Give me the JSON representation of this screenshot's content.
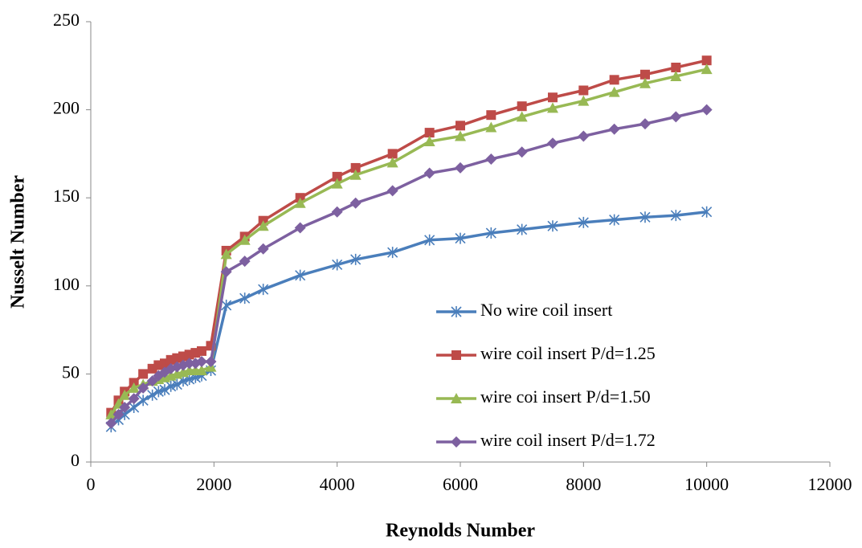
{
  "chart_data": {
    "type": "line",
    "xlabel": "Reynolds Number",
    "ylabel": "Nusselt Number",
    "x": [
      330,
      450,
      550,
      700,
      850,
      1000,
      1100,
      1200,
      1300,
      1400,
      1500,
      1600,
      1700,
      1800,
      1950,
      2200,
      2500,
      2800,
      3400,
      4000,
      4300,
      4900,
      5500,
      6000,
      6500,
      7000,
      7500,
      8000,
      8500,
      9000,
      9500,
      10000
    ],
    "series": [
      {
        "name": "No wire coil insert",
        "color": "#4a7ebb",
        "marker": "star",
        "values": [
          20,
          24,
          27,
          31,
          35,
          38,
          40,
          41,
          43,
          44,
          46,
          47,
          48,
          49,
          52,
          89,
          93,
          98,
          106,
          112,
          115,
          119,
          126,
          127,
          130,
          132,
          134,
          136,
          137.5,
          139,
          140,
          142
        ]
      },
      {
        "name": "wire coil insert P/d=1.25",
        "color": "#be4b48",
        "marker": "square",
        "values": [
          28,
          35,
          40,
          45,
          50,
          53,
          55,
          56,
          58,
          59,
          60,
          61,
          62,
          63,
          66,
          120,
          128,
          137,
          150,
          162,
          167,
          175,
          187,
          191,
          197,
          202,
          207,
          211,
          217,
          220,
          224,
          228
        ]
      },
      {
        "name": "wire coi insert P/d=1.50",
        "color": "#98b954",
        "marker": "triangle",
        "values": [
          27,
          33,
          38,
          42,
          44,
          46,
          47,
          48,
          49,
          50,
          51,
          52,
          52,
          52,
          54,
          118,
          126,
          134,
          147,
          158,
          163,
          170,
          182,
          185,
          190,
          196,
          201,
          205,
          210,
          215,
          219,
          223
        ]
      },
      {
        "name": "wire coil insert P/d=1.72",
        "color": "#7d60a0",
        "marker": "diamond",
        "values": [
          22,
          27,
          31,
          36,
          42,
          46,
          49,
          51,
          53,
          54,
          55,
          56,
          56,
          57,
          57,
          108,
          114,
          121,
          133,
          142,
          147,
          154,
          164,
          167,
          172,
          176,
          181,
          185,
          189,
          192,
          196,
          200
        ]
      }
    ],
    "xlim": [
      0,
      12000
    ],
    "xticks": [
      0,
      2000,
      4000,
      6000,
      8000,
      10000,
      12000
    ],
    "ylim": [
      0,
      250
    ],
    "yticks": [
      0,
      50,
      100,
      150,
      200,
      250
    ],
    "grid": false,
    "legend": "lower right"
  }
}
